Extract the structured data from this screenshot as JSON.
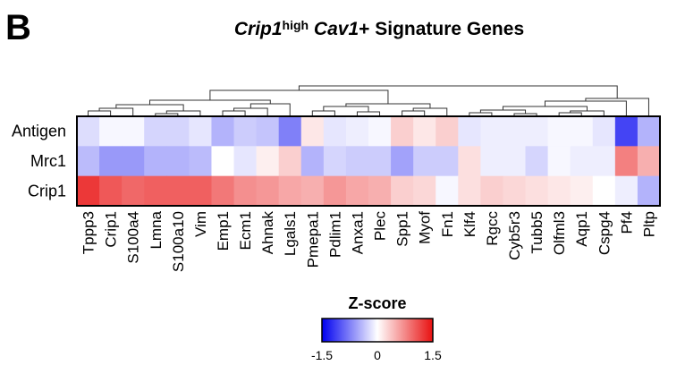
{
  "panel_label": "B",
  "title": {
    "part1": "Crip1",
    "part2": "high",
    "part3": " Cav1",
    "part4": "+ Signature Genes"
  },
  "chart_data": {
    "type": "heatmap",
    "rows": [
      "Antigen",
      "Mrc1",
      "Crip1"
    ],
    "columns": [
      "Tppp3",
      "Crip1",
      "S100a4",
      "Lmna",
      "S100a10",
      "Vim",
      "Emp1",
      "Ecm1",
      "Ahnak",
      "Lgals1",
      "Pmepa1",
      "Pdlim1",
      "Anxa1",
      "Plec",
      "Spp1",
      "Myof",
      "Fn1",
      "Klf4",
      "Rgcc",
      "Cyb5r3",
      "Tubb5",
      "Olfml3",
      "Aqp1",
      "Cspg4",
      "Pf4",
      "Pltp"
    ],
    "values": [
      [
        -0.2,
        -0.05,
        -0.05,
        -0.25,
        -0.25,
        -0.15,
        -0.45,
        -0.3,
        -0.35,
        -0.75,
        0.15,
        -0.15,
        -0.1,
        -0.05,
        0.3,
        0.15,
        0.3,
        -0.15,
        -0.1,
        -0.1,
        -0.1,
        -0.05,
        -0.05,
        -0.15,
        -1.1,
        -0.45
      ],
      [
        -0.4,
        -0.6,
        -0.6,
        -0.45,
        -0.45,
        -0.4,
        0.0,
        -0.15,
        0.1,
        0.3,
        -0.45,
        -0.25,
        -0.3,
        -0.3,
        -0.55,
        -0.3,
        -0.3,
        0.2,
        -0.1,
        -0.1,
        -0.25,
        -0.05,
        -0.1,
        -0.1,
        0.8,
        0.5
      ],
      [
        1.25,
        1.05,
        0.95,
        1.0,
        1.0,
        1.0,
        0.85,
        0.7,
        0.65,
        0.55,
        0.5,
        0.65,
        0.55,
        0.5,
        0.3,
        0.25,
        -0.05,
        0.2,
        0.3,
        0.25,
        0.2,
        0.15,
        0.1,
        0.0,
        -0.1,
        -0.45
      ]
    ],
    "colorbar": {
      "title": "Z-score",
      "min": -1.5,
      "max": 1.5,
      "ticks": [
        "-1.5",
        "0",
        "1.5"
      ],
      "colors": [
        "#0000f0",
        "#ffffff",
        "#e81010"
      ]
    },
    "dendrogram": "top"
  }
}
